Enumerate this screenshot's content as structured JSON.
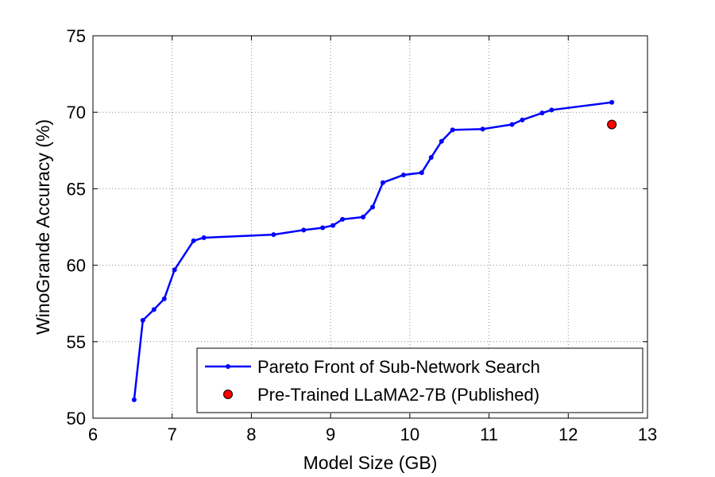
{
  "chart_data": {
    "type": "line",
    "title": "",
    "xlabel": "Model Size (GB)",
    "ylabel": "WinoGrande Accuracy (%)",
    "xlim": [
      6,
      13
    ],
    "ylim": [
      50,
      75
    ],
    "xticks": [
      6,
      7,
      8,
      9,
      10,
      11,
      12,
      13
    ],
    "yticks": [
      50,
      55,
      60,
      65,
      70,
      75
    ],
    "grid": true,
    "legend_position": "bottom-right",
    "series": [
      {
        "name": "Pareto Front of Sub-Network Search",
        "color": "#0000ff",
        "marker": "dot",
        "x": [
          6.52,
          6.63,
          6.77,
          6.9,
          7.03,
          7.27,
          7.4,
          8.28,
          8.66,
          8.9,
          9.03,
          9.15,
          9.41,
          9.53,
          9.66,
          9.92,
          10.15,
          10.27,
          10.4,
          10.54,
          10.92,
          11.29,
          11.42,
          11.67,
          11.79,
          12.55
        ],
        "y": [
          51.2,
          56.4,
          57.1,
          57.8,
          59.7,
          61.6,
          61.8,
          62.0,
          62.3,
          62.45,
          62.6,
          63.0,
          63.15,
          63.8,
          65.4,
          65.9,
          66.05,
          67.05,
          68.1,
          68.85,
          68.9,
          69.2,
          69.5,
          69.95,
          70.15,
          70.65
        ]
      },
      {
        "name": "Pre-Trained LLaMA2-7B (Published)",
        "color": "#ff0000",
        "marker": "circle",
        "x": [
          12.55
        ],
        "y": [
          69.2
        ]
      }
    ]
  }
}
